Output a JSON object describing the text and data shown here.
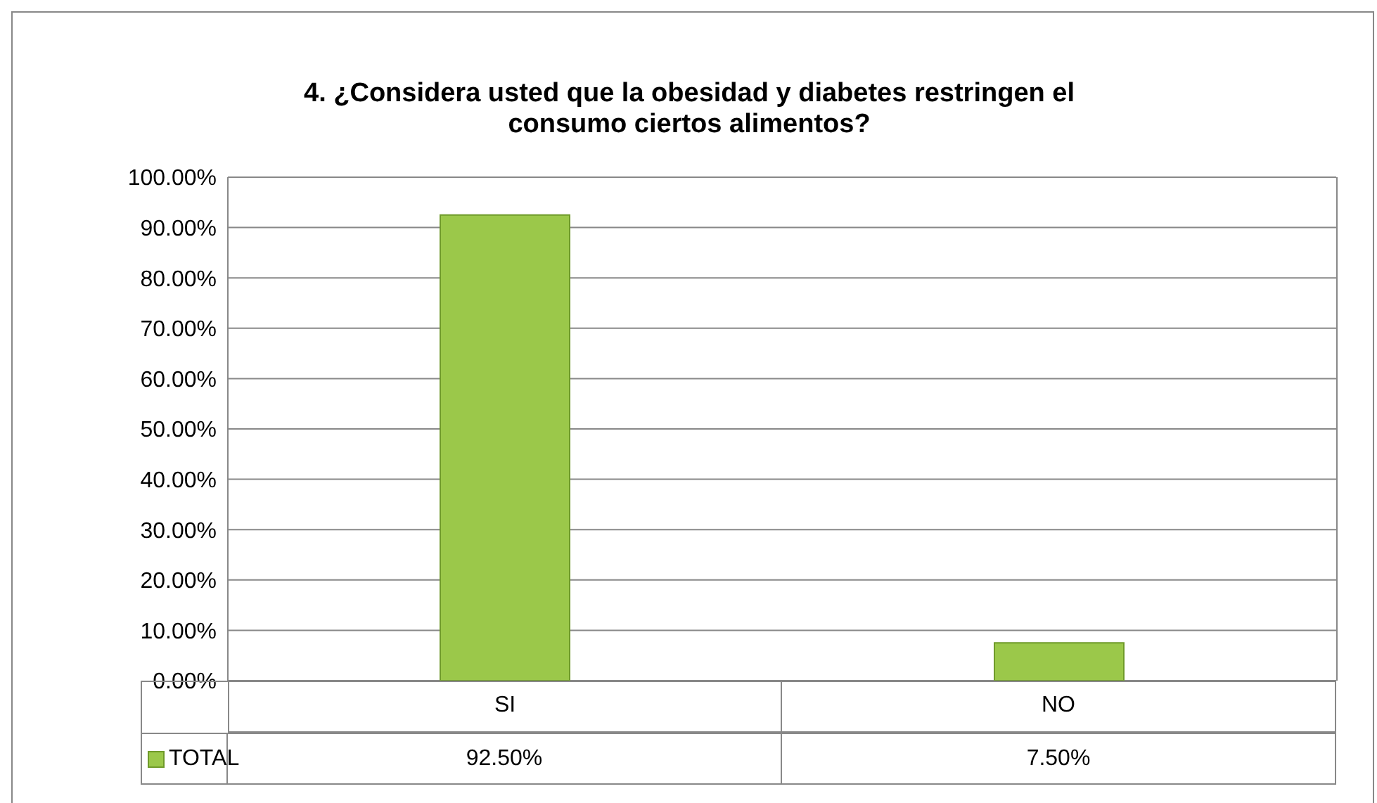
{
  "chart_data": {
    "type": "bar",
    "title": "4. ¿Considera usted que la obesidad y diabetes restringen el consumo ciertos alimentos?",
    "categories": [
      "SI",
      "NO"
    ],
    "series": [
      {
        "name": "TOTAL",
        "color": "#9bc84a",
        "values": [
          92.5,
          7.5
        ],
        "value_labels": [
          "92.50%",
          "7.50%"
        ]
      }
    ],
    "ylim": [
      0,
      100
    ],
    "yticks": [
      {
        "value": 0,
        "label": "0.00%"
      },
      {
        "value": 10,
        "label": "10.00%"
      },
      {
        "value": 20,
        "label": "20.00%"
      },
      {
        "value": 30,
        "label": "30.00%"
      },
      {
        "value": 40,
        "label": "40.00%"
      },
      {
        "value": 50,
        "label": "50.00%"
      },
      {
        "value": 60,
        "label": "60.00%"
      },
      {
        "value": 70,
        "label": "70.00%"
      },
      {
        "value": 80,
        "label": "80.00%"
      },
      {
        "value": 90,
        "label": "90.00%"
      },
      {
        "value": 100,
        "label": "100.00%"
      }
    ],
    "grid": "y",
    "legend": "bottom left",
    "data_labels": true
  }
}
